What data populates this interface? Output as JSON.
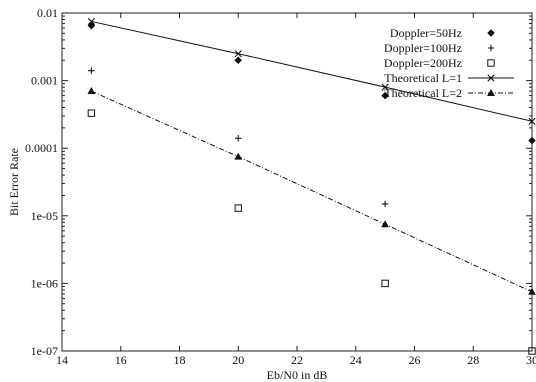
{
  "chart_data": {
    "type": "scatter",
    "xlabel": "Eb/N0 in dB",
    "ylabel": "Bit Error Rate",
    "xlim": [
      14,
      30
    ],
    "ylim": [
      1e-07,
      0.01
    ],
    "yscale": "log",
    "grid": false,
    "legend_position": "top-right",
    "x_ticks": [
      14,
      16,
      18,
      20,
      22,
      24,
      26,
      28,
      30
    ],
    "x_tick_labels": [
      "14",
      "16",
      "18",
      "20",
      "22",
      "24",
      "26",
      "28",
      "30"
    ],
    "y_ticks": [
      1e-07,
      1e-06,
      1e-05,
      0.0001,
      0.001,
      0.01
    ],
    "y_tick_labels": [
      "1e-07",
      "1e-06",
      "1e-05",
      "0.0001",
      "0.001",
      "0.01"
    ],
    "series": [
      {
        "name": "Doppler=50Hz",
        "style": "points",
        "marker": "diamond",
        "x": [
          15,
          20,
          25,
          30
        ],
        "y": [
          0.0065,
          0.002,
          0.0006,
          0.00013
        ]
      },
      {
        "name": "Doppler=100Hz",
        "style": "points",
        "marker": "plus",
        "x": [
          15,
          20,
          25
        ],
        "y": [
          0.0014,
          0.00014,
          1.5e-05
        ]
      },
      {
        "name": "Doppler=200Hz",
        "style": "points",
        "marker": "square",
        "x": [
          15,
          20,
          25,
          30
        ],
        "y": [
          0.00033,
          1.3e-05,
          1e-06,
          1e-07
        ]
      },
      {
        "name": "Theoretical L=1",
        "style": "linespoints",
        "marker": "x",
        "x": [
          15,
          20,
          25,
          30
        ],
        "y": [
          0.0075,
          0.0025,
          0.0008,
          0.00025
        ]
      },
      {
        "name": "Theoretical L=2",
        "style": "linespoints",
        "marker": "triangle",
        "dashed": true,
        "x": [
          15,
          20,
          25,
          30
        ],
        "y": [
          0.0007,
          7.5e-05,
          7.5e-06,
          7.5e-07
        ]
      }
    ]
  }
}
